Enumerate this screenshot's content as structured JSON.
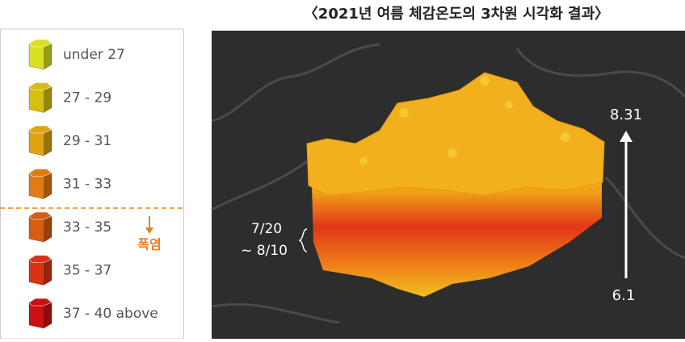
{
  "title": "〈2021년 여름 체감온도의 3차원 시각화 결과〉",
  "legend": {
    "items": [
      {
        "label": "under 27",
        "color": "#d9e021"
      },
      {
        "label": "27 - 29",
        "color": "#d6bf12"
      },
      {
        "label": "29 - 31",
        "color": "#e0a312"
      },
      {
        "label": "31 - 33",
        "color": "#e07c14"
      },
      {
        "label": "33 - 35",
        "color": "#d85c12"
      },
      {
        "label": "35 - 37",
        "color": "#d83414"
      },
      {
        "label": "37 - 40 above",
        "color": "#c81212"
      }
    ],
    "annotation": "폭염"
  },
  "map": {
    "date_range": [
      "7/20",
      "~ 8/10"
    ],
    "arrow": {
      "top": "8.31",
      "bottom": "6.1"
    }
  }
}
